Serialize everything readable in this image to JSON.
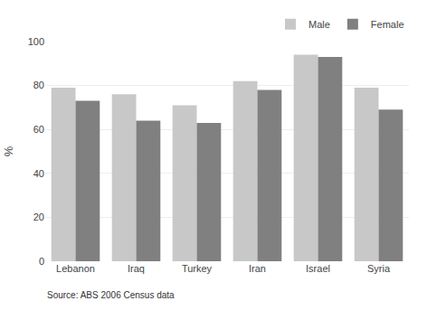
{
  "chart_data": {
    "type": "bar",
    "categories": [
      "Lebanon",
      "Iraq",
      "Turkey",
      "Iran",
      "Israel",
      "Syria"
    ],
    "series": [
      {
        "name": "Male",
        "color": "#c8c8c8",
        "values": [
          79,
          76,
          71,
          82,
          94,
          79
        ]
      },
      {
        "name": "Female",
        "color": "#808080",
        "values": [
          73,
          64,
          63,
          78,
          93,
          69
        ]
      }
    ],
    "ylabel": "%",
    "ylim": [
      0,
      100
    ],
    "yticks": [
      0,
      20,
      40,
      60,
      80,
      100
    ],
    "grid": true,
    "legend": "upper right",
    "annotations": [
      "Source: ABS 2006 Census data"
    ]
  }
}
